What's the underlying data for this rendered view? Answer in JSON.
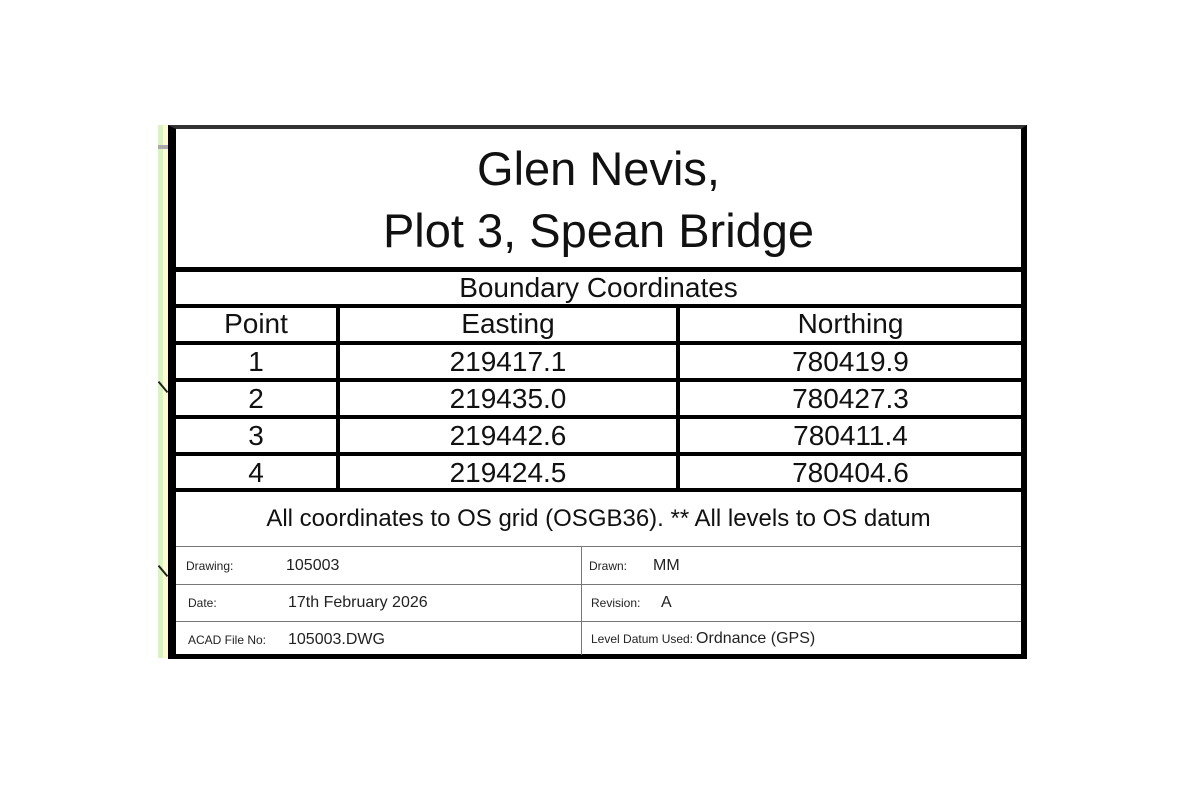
{
  "title": {
    "line1": "Glen Nevis,",
    "line2": "Plot 3, Spean Bridge"
  },
  "table": {
    "heading": "Boundary Coordinates",
    "columns": [
      "Point",
      "Easting",
      "Northing"
    ],
    "rows": [
      {
        "point": "1",
        "easting": "219417.1",
        "northing": "780419.9"
      },
      {
        "point": "2",
        "easting": "219435.0",
        "northing": "780427.3"
      },
      {
        "point": "3",
        "easting": "219442.6",
        "northing": "780411.4"
      },
      {
        "point": "4",
        "easting": "219424.5",
        "northing": "780404.6"
      }
    ]
  },
  "note": "All coordinates to OS grid (OSGB36). ** All levels to OS datum",
  "title_block": {
    "drawing": {
      "label": "Drawing:",
      "value": "105003"
    },
    "date": {
      "label": "Date:",
      "value": "17th February 2026"
    },
    "acad": {
      "label": "ACAD File No:",
      "value": "105003.DWG"
    },
    "drawn": {
      "label": "Drawn:",
      "value": "MM"
    },
    "revision": {
      "label": "Revision:",
      "value": "A"
    },
    "datum": {
      "label": "Level Datum Used:",
      "value": "Ordnance (GPS)"
    }
  }
}
